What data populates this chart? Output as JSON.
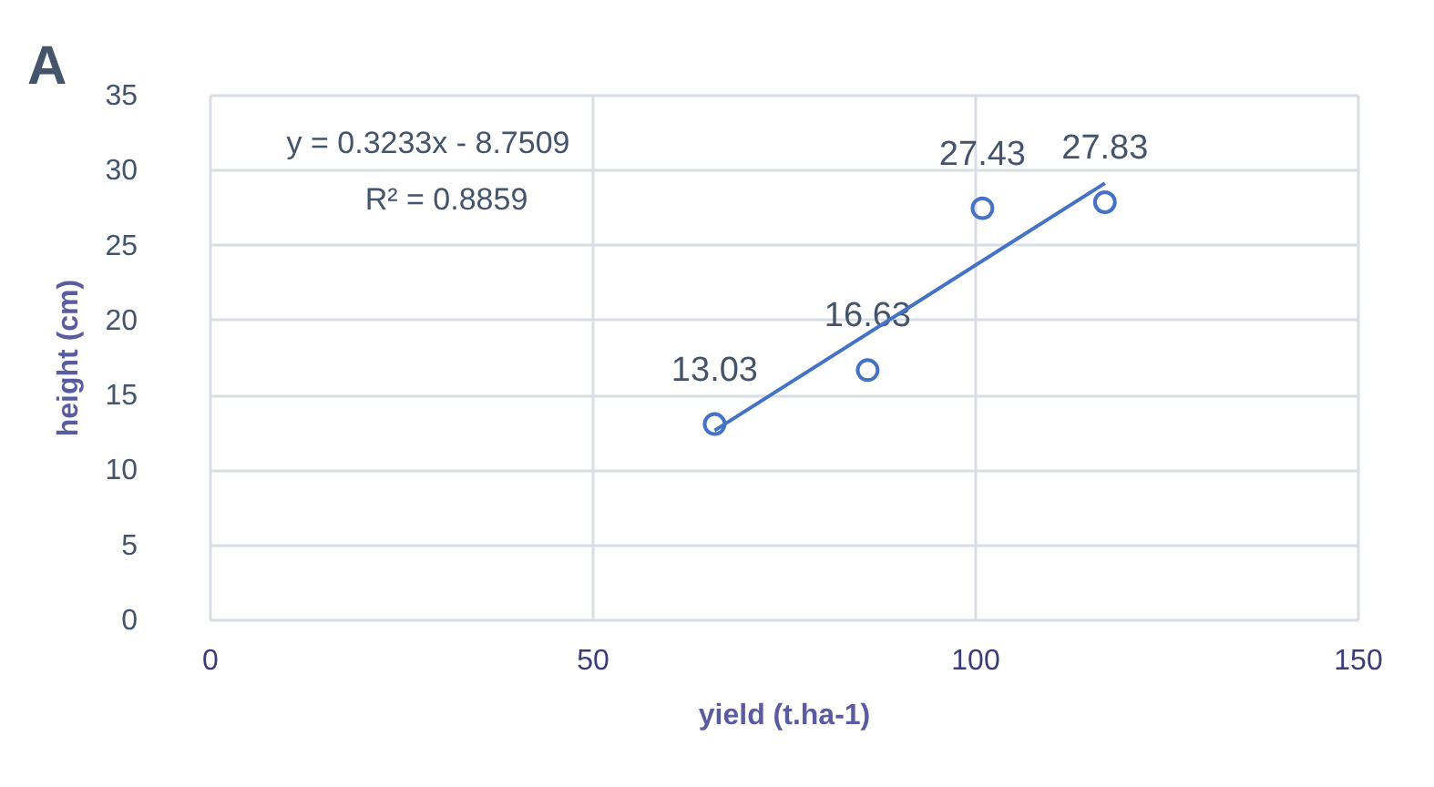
{
  "chart_data": {
    "type": "scatter",
    "title": "A",
    "xlabel": "yield (t.ha-1)",
    "ylabel": "height (cm)",
    "x": [
      66,
      86,
      101,
      117
    ],
    "series": [
      {
        "color": "#4472c4",
        "marker": "circle",
        "values": [
          13.03,
          16.63,
          27.43,
          27.83
        ],
        "value_labels": [
          "13.03",
          "16.63",
          "27.43",
          "27.83"
        ]
      },
      {
        "type": "line",
        "color": "#4472c4",
        "x": [
          66,
          117
        ],
        "values": [
          12.6,
          29.1
        ]
      }
    ],
    "annotations": [
      "y = 0.3233x - 8.7509",
      "R² = 0.8859"
    ],
    "line_style": "solid",
    "grid": true,
    "xlim": [
      0,
      150
    ],
    "xticks": [
      0,
      50,
      100,
      150
    ],
    "ylim": [
      0,
      35
    ],
    "yticks": [
      0,
      5,
      10,
      15,
      20,
      25,
      30,
      35
    ]
  }
}
